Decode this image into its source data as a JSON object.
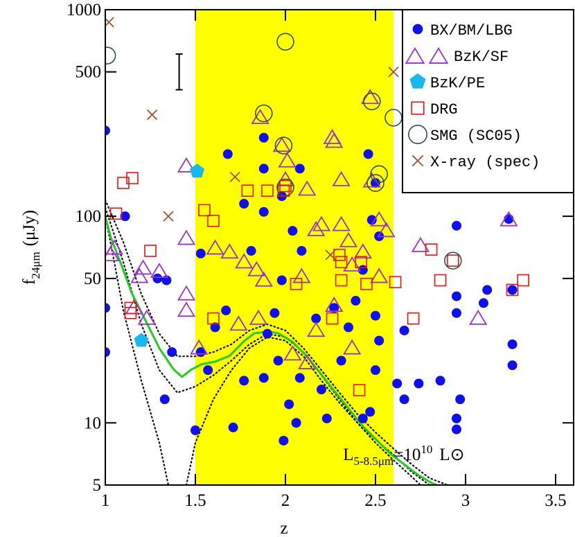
{
  "chart_data": {
    "type": "scatter",
    "xlabel": "z",
    "ylabel": {
      "main": "f",
      "sub": "24μm",
      "unit": "(μJy)"
    },
    "xlim": [
      1,
      3.6
    ],
    "ylim": [
      5,
      1000
    ],
    "ylog": true,
    "xticks": [
      1,
      1.5,
      2,
      2.5,
      3,
      3.5
    ],
    "yticks": [
      5,
      10,
      50,
      100,
      500,
      1000
    ],
    "shade": {
      "x": [
        1.5,
        2.6
      ],
      "color": "#ffff00"
    },
    "legend": "upper right",
    "error_bar": {
      "x": 1.41,
      "ylow": 410,
      "yhigh": 610
    },
    "annotation": {
      "text": "L",
      "sub": "5-8.5μm",
      "eq": "=10",
      "sup": "10",
      "unit": "L⊙",
      "x": 2.32,
      "y": 6.6
    },
    "series": [
      {
        "name": "BX/BM/LBG",
        "marker": "circle",
        "color": "#1010ee",
        "x": [
          1.0,
          1.0,
          1.0,
          1.11,
          1.29,
          1.34,
          1.33,
          1.37,
          1.5,
          1.53,
          1.53,
          1.68,
          1.77,
          1.81,
          1.88,
          1.88,
          1.88,
          1.98,
          2.08,
          2.04,
          2.09,
          1.98,
          1.94,
          1.9,
          1.96,
          1.88,
          1.77,
          2.08,
          2.02,
          2.06,
          1.99,
          1.71,
          2.2,
          2.23,
          2.17,
          2.27,
          2.31,
          2.35,
          2.39,
          2.43,
          2.48,
          2.52,
          2.5,
          2.46,
          2.5,
          2.52,
          2.5,
          2.47,
          2.43,
          2.62,
          2.66,
          2.66,
          2.74,
          2.86,
          2.95,
          2.95,
          2.95,
          2.95,
          2.95,
          2.97,
          3.1,
          3.12,
          3.26,
          3.26,
          3.24,
          3.26,
          1.61,
          1.67,
          1.57
        ],
        "values": [
          260,
          36,
          22,
          100,
          50,
          49,
          13,
          22,
          9.2,
          22,
          66,
          200,
          115,
          68,
          170,
          240,
          105,
          125,
          170,
          85,
          68,
          49,
          34,
          27,
          20,
          16.5,
          16,
          16.5,
          12.3,
          10,
          8.2,
          9.5,
          14.5,
          10.5,
          32,
          36,
          20,
          29,
          39,
          55,
          96,
          80,
          145,
          200,
          33,
          25,
          18,
          11.3,
          10.5,
          15.5,
          28,
          13,
          15.5,
          16,
          41,
          34,
          90,
          10.5,
          9.3,
          13,
          38,
          44,
          19,
          24,
          97,
          44,
          29,
          35,
          18
        ]
      },
      {
        "name": "BzK/SF",
        "marker": "triangle",
        "color": "#9933cc",
        "x": [
          1.05,
          1.03,
          1.16,
          1.19,
          1.21,
          1.23,
          1.3,
          1.45,
          1.45,
          1.45,
          1.45,
          1.61,
          1.69,
          1.77,
          1.84,
          1.85,
          1.88,
          1.86,
          1.98,
          2.01,
          2.0,
          2.12,
          2.17,
          2.2,
          2.26,
          2.27,
          2.31,
          2.31,
          2.35,
          2.37,
          2.43,
          2.47,
          2.48,
          2.52,
          2.52,
          2.56,
          2.09,
          2.17,
          2.27,
          1.74,
          1.52,
          2.75,
          3.07,
          3.24,
          2.04,
          2.12,
          2.37
        ],
        "values": [
          70,
          65,
          36,
          51,
          56,
          32,
          54,
          175,
          78,
          42,
          35,
          70,
          67,
          60,
          55,
          32,
          49,
          300,
          220,
          185,
          150,
          135,
          86,
          91,
          240,
          230,
          150,
          91,
          76,
          58,
          67,
          375,
          148,
          96,
          51,
          85,
          51,
          28,
          37,
          30,
          23,
          72,
          32,
          96,
          21.5,
          19.5,
          23
        ]
      },
      {
        "name": "BzK/PE",
        "marker": "pentagon",
        "color": "#18b8ee",
        "x": [
          1.51,
          1.2
        ],
        "values": [
          165,
          25
        ]
      },
      {
        "name": "DRG",
        "marker": "square",
        "color": "#ee1111",
        "x": [
          1.1,
          1.15,
          1.06,
          1.25,
          1.14,
          1.14,
          1.55,
          1.6,
          1.6,
          1.79,
          1.9,
          1.99,
          2.0,
          2.06,
          2.26,
          2.3,
          2.31,
          2.31,
          2.42,
          2.45,
          2.61,
          2.41,
          2.71,
          2.81,
          2.86,
          2.93,
          3.26,
          3.32
        ],
        "values": [
          145,
          153,
          103,
          68,
          36,
          34,
          107,
          95,
          32,
          133,
          133,
          133,
          140,
          47,
          32,
          65,
          49,
          60,
          60,
          47,
          48,
          14.4,
          32,
          69,
          49,
          61,
          44,
          49
        ]
      },
      {
        "name": "SMG (SC05)",
        "marker": "ring",
        "color": "#2f4f4f",
        "x": [
          1.01,
          2.0,
          1.88,
          2.48,
          2.6,
          1.99,
          2.0,
          2.5,
          2.52,
          2.93
        ],
        "values": [
          600,
          700,
          315,
          360,
          300,
          220,
          138,
          145,
          160,
          61
        ]
      },
      {
        "name": "X-ray (spec)",
        "marker": "x",
        "color": "#a0522d",
        "x": [
          1.02,
          1.26,
          1.35,
          1.72,
          2.25,
          2.6
        ],
        "values": [
          870,
          310,
          100,
          155,
          65,
          500
        ]
      }
    ],
    "curves": [
      {
        "style": "dotted",
        "color": "#111111",
        "x": [
          1.0,
          1.1,
          1.2,
          1.3,
          1.4,
          1.5,
          1.6,
          1.7,
          1.8,
          1.9,
          2.0,
          2.1,
          2.2,
          2.3,
          2.4,
          2.5,
          2.6,
          2.7,
          2.8,
          2.9
        ],
        "values": [
          120,
          75,
          42,
          27,
          21,
          21,
          22,
          24,
          28,
          30,
          28,
          23,
          18,
          14,
          11,
          9,
          7.5,
          6.3,
          5.4,
          5
        ]
      },
      {
        "style": "dotted",
        "color": "#111111",
        "x": [
          1.0,
          1.1,
          1.2,
          1.3,
          1.4,
          1.5,
          1.6,
          1.7,
          1.8,
          1.9,
          2.0,
          2.1,
          2.2,
          2.3,
          2.4,
          2.5,
          2.6,
          2.7,
          2.8
        ],
        "values": [
          110,
          60,
          30,
          18,
          14,
          15,
          17,
          20,
          24,
          27,
          26,
          22,
          17,
          13,
          10,
          8.3,
          7,
          5.8,
          5
        ]
      },
      {
        "style": "dotted",
        "color": "#111111",
        "x": [
          1.0,
          1.05,
          1.1,
          1.2,
          1.3,
          1.35
        ],
        "values": [
          100,
          60,
          35,
          16,
          8,
          5
        ]
      },
      {
        "style": "dotted",
        "color": "#111111",
        "x": [
          1.45,
          1.5,
          1.6,
          1.7,
          1.8,
          1.9,
          2.0,
          2.1,
          2.2,
          2.3,
          2.4,
          2.5,
          2.6,
          2.7,
          2.75
        ],
        "values": [
          5,
          8,
          13,
          18,
          23,
          26,
          25,
          21,
          16,
          12.5,
          10,
          8,
          6.6,
          5.5,
          5
        ]
      },
      {
        "style": "solid",
        "color": "#22cc22",
        "x": [
          1.0,
          1.03,
          1.09,
          1.147,
          1.225,
          1.302,
          1.38,
          1.426,
          1.477,
          1.535,
          1.612,
          1.69,
          1.767,
          1.826,
          1.903,
          1.961,
          2.039,
          2.116,
          2.194,
          2.271,
          2.349,
          2.426,
          2.504,
          2.581,
          2.659,
          2.736,
          2.814,
          2.84
        ],
        "values": [
          100,
          79.2,
          58,
          42.5,
          31.1,
          22.8,
          18.1,
          16.7,
          18.1,
          19.2,
          19.8,
          21.1,
          24.7,
          27.1,
          27.7,
          27.1,
          24.7,
          21.1,
          17.4,
          14.3,
          11.8,
          9.7,
          8.3,
          7.1,
          6.3,
          5.6,
          5.1,
          5
        ]
      }
    ]
  }
}
